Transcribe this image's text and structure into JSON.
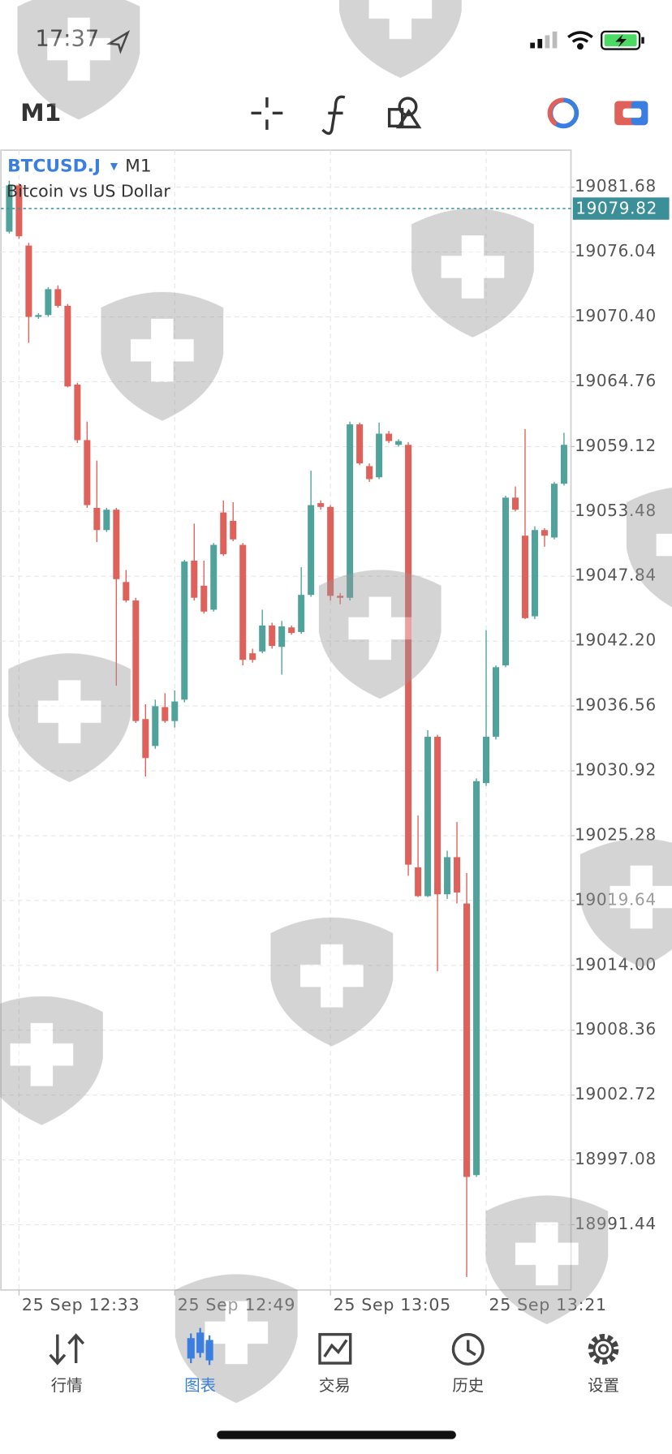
{
  "status_bar": {
    "time": "17:37"
  },
  "toolbar": {
    "timeframe": "M1"
  },
  "chart_data": {
    "type": "candlestick",
    "symbol": "BTCUSD.J",
    "timeframe": "M1",
    "subtitle": "Bitcoin vs US Dollar",
    "categories": [
      null,
      "25 Sep 12:33",
      null,
      null,
      null,
      null,
      null,
      null,
      null,
      null,
      null,
      null,
      null,
      null,
      null,
      null,
      null,
      "25 Sep 12:49",
      null,
      null,
      null,
      null,
      null,
      null,
      null,
      null,
      null,
      null,
      null,
      null,
      null,
      null,
      null,
      "25 Sep 13:05",
      null,
      null,
      null,
      null,
      null,
      null,
      null,
      null,
      null,
      null,
      null,
      null,
      null,
      null,
      null,
      "25 Sep 13:21",
      null,
      null,
      null,
      null,
      null,
      null,
      null,
      null
    ],
    "open": [
      19077.81,
      19081.84,
      19076.6,
      19070.4,
      19070.56,
      19072.81,
      19071.36,
      19064.51,
      19059.68,
      19053.79,
      19051.86,
      19053.63,
      19047.34,
      19045.73,
      19035.42,
      19033.08,
      19036.46,
      19035.25,
      19037.11,
      19049.2,
      19047.02,
      19044.93,
      19053.39,
      19052.66,
      19050.57,
      19041.14,
      19041.3,
      19043.56,
      19041.7,
      19043.39,
      19042.99,
      19046.22,
      19054.2,
      19053.87,
      19046.14,
      19045.97,
      19061.05,
      19057.42,
      19056.45,
      19060.24,
      19059.27,
      19059.27,
      19022.52,
      19020.02,
      19033.88,
      19020.18,
      19023.41,
      19019.38,
      18995.76,
      19029.85,
      19033.88,
      19040.09,
      19054.68,
      19051.37,
      19044.36,
      19051.86,
      19051.21,
      19055.89
    ],
    "high": [
      19082.24,
      19082.0,
      19076.84,
      19070.72,
      19072.98,
      19073.14,
      19071.52,
      19064.67,
      19061.29,
      19057.9,
      19053.79,
      19053.79,
      19048.39,
      19045.97,
      19036.71,
      19037.11,
      19037.67,
      19037.91,
      19049.28,
      19052.42,
      19049.2,
      19050.73,
      19054.44,
      19054.28,
      19050.73,
      19041.54,
      19044.93,
      19043.8,
      19043.96,
      19043.56,
      19048.63,
      19057.02,
      19054.44,
      19054.03,
      19046.38,
      19061.29,
      19061.21,
      19057.66,
      19061.21,
      19060.48,
      19059.76,
      19059.51,
      19027.03,
      19034.45,
      19034.05,
      19023.97,
      19026.47,
      19022.04,
      19030.26,
      19043.15,
      19040.09,
      19054.84,
      19055.65,
      19060.64,
      19052.18,
      19052.02,
      19056.05,
      19060.32
    ],
    "low": [
      19077.65,
      19077.17,
      19068.14,
      19070.23,
      19070.4,
      19071.2,
      19064.27,
      19059.43,
      19053.79,
      19050.81,
      19051.7,
      19038.32,
      19045.57,
      19035.09,
      19030.42,
      19032.84,
      19035.09,
      19034.69,
      19036.87,
      19045.73,
      19044.6,
      19044.77,
      19049.6,
      19050.89,
      19040.09,
      19040.33,
      19041.14,
      19041.54,
      19039.28,
      19042.75,
      19042.83,
      19046.05,
      19053.63,
      19045.73,
      19045.41,
      19045.73,
      19057.5,
      19056.05,
      19056.29,
      19059.43,
      19059.11,
      19021.79,
      19019.94,
      19019.94,
      19013.49,
      19019.78,
      19019.38,
      18986.89,
      18995.6,
      19029.61,
      19033.64,
      19039.93,
      19053.47,
      19044.12,
      19044.12,
      19050.41,
      19051.05,
      19055.73
    ],
    "close": [
      19081.84,
      19077.41,
      19070.4,
      19070.56,
      19072.81,
      19071.36,
      19064.35,
      19059.68,
      19054.03,
      19051.86,
      19053.63,
      19047.59,
      19045.73,
      19035.25,
      19032.03,
      19036.54,
      19035.25,
      19036.95,
      19049.12,
      19045.97,
      19044.77,
      19050.57,
      19049.76,
      19051.05,
      19040.57,
      19040.57,
      19043.56,
      19041.78,
      19043.48,
      19042.91,
      19046.22,
      19054.03,
      19053.87,
      19046.14,
      19045.97,
      19061.05,
      19057.66,
      19056.29,
      19060.24,
      19059.6,
      19059.6,
      19022.76,
      19020.02,
      19033.88,
      19020.18,
      19023.41,
      19020.34,
      18995.6,
      19030.02,
      19033.88,
      19039.93,
      19054.68,
      19053.63,
      19044.2,
      19051.86,
      19051.37,
      19055.89,
      19059.27
    ],
    "up_color": "#4fa39a",
    "down_color": "#e0605a",
    "ylim": [
      18985.77,
      19084.9
    ],
    "yticks": [
      19081.68,
      19076.04,
      {
        "value": 19070.4,
        "label": "19070.40"
      },
      19064.76,
      19059.12,
      19053.48,
      19047.84,
      {
        "value": 19042.2,
        "label": "19042.20"
      },
      19036.56,
      19030.92,
      19025.28,
      19019.64,
      {
        "value": 19014,
        "label": "19014.00"
      },
      19008.36,
      19002.72,
      18997.08,
      18991.44
    ],
    "grid": true,
    "price_line": {
      "value": 19079.82,
      "color": "#3a8f99"
    }
  },
  "tab_bar": {
    "tabs": [
      "行情",
      "图表",
      "交易",
      "历史",
      "设置"
    ],
    "active": 1,
    "active_color": "#3a7fe0"
  }
}
